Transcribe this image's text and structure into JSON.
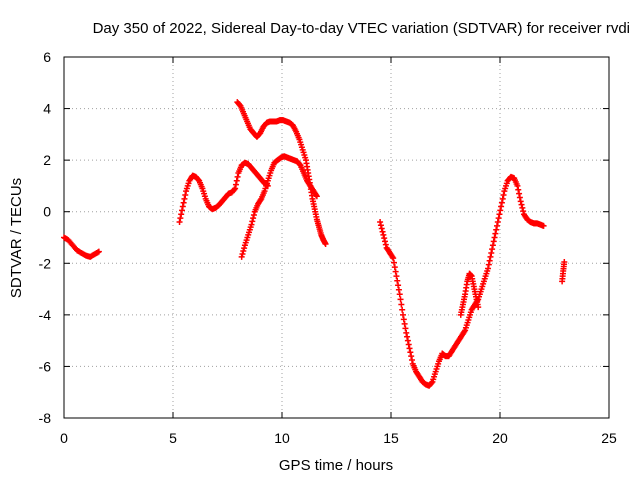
{
  "chart_data": {
    "type": "scatter",
    "title": "Day 350 of 2022, Sidereal Day-to-day VTEC variation (SDTVAR) for receiver rvdi",
    "xlabel": "GPS time / hours",
    "ylabel": "SDTVAR / TECUs",
    "xlim": [
      0,
      25
    ],
    "ylim": [
      -8,
      6
    ],
    "xticks": [
      0,
      5,
      10,
      15,
      20,
      25
    ],
    "yticks": [
      -8,
      -6,
      -4,
      -2,
      0,
      2,
      4,
      6
    ],
    "grid": true,
    "marker": "plus",
    "series_color": "#ff0000",
    "segments": [
      {
        "x": [
          0.0,
          0.2,
          0.4,
          0.6,
          0.8,
          1.0,
          1.2,
          1.4,
          1.6
        ],
        "y": [
          -1.0,
          -1.1,
          -1.3,
          -1.5,
          -1.6,
          -1.7,
          -1.75,
          -1.65,
          -1.55
        ]
      },
      {
        "x": [
          5.3,
          5.45,
          5.6,
          5.75,
          5.9,
          6.05,
          6.2,
          6.35,
          6.5,
          6.65,
          6.8,
          6.95,
          7.1,
          7.25,
          7.4,
          7.55,
          7.7,
          7.85,
          8.0,
          8.15,
          8.3,
          8.45,
          8.6,
          8.75,
          8.9,
          9.05,
          9.2,
          9.35
        ],
        "y": [
          -0.4,
          0.2,
          0.8,
          1.2,
          1.4,
          1.35,
          1.2,
          0.9,
          0.5,
          0.2,
          0.1,
          0.15,
          0.25,
          0.4,
          0.55,
          0.7,
          0.75,
          0.9,
          1.5,
          1.8,
          1.9,
          1.85,
          1.7,
          1.55,
          1.4,
          1.25,
          1.1,
          1.0
        ]
      },
      {
        "x": [
          7.95,
          8.1,
          8.25,
          8.4,
          8.55,
          8.7,
          8.85,
          9.0,
          9.15,
          9.3,
          9.45,
          9.6,
          9.75,
          9.9,
          10.05,
          10.2,
          10.35,
          10.5,
          10.65,
          10.8,
          10.95,
          11.1,
          11.2,
          11.3,
          11.4,
          11.5,
          11.6,
          11.7,
          11.8,
          11.9,
          12.0
        ],
        "y": [
          4.25,
          4.1,
          3.8,
          3.5,
          3.2,
          3.05,
          2.9,
          3.05,
          3.3,
          3.45,
          3.5,
          3.5,
          3.5,
          3.55,
          3.55,
          3.5,
          3.45,
          3.35,
          3.1,
          2.8,
          2.4,
          2.0,
          1.5,
          1.0,
          0.5,
          0.1,
          -0.3,
          -0.6,
          -0.9,
          -1.1,
          -1.25
        ]
      },
      {
        "x": [
          8.15,
          8.3,
          8.45,
          8.6,
          8.75,
          8.9,
          9.05,
          9.2,
          9.35,
          9.5,
          9.65,
          9.8,
          9.95,
          10.1,
          10.25,
          10.4,
          10.55,
          10.7,
          10.85,
          11.0,
          11.15,
          11.3,
          11.45,
          11.6
        ],
        "y": [
          -1.75,
          -1.3,
          -0.9,
          -0.5,
          0.0,
          0.3,
          0.5,
          0.8,
          1.2,
          1.6,
          1.9,
          2.0,
          2.1,
          2.15,
          2.1,
          2.05,
          2.0,
          1.95,
          1.8,
          1.5,
          1.2,
          1.0,
          0.8,
          0.6
        ]
      },
      {
        "x": [
          14.5,
          14.65,
          14.8,
          14.95,
          15.1,
          15.25,
          15.4,
          15.55,
          15.7,
          15.85,
          16.0,
          16.15,
          16.3,
          16.45,
          16.6,
          16.75,
          16.9,
          17.05,
          17.2,
          17.35,
          17.5,
          17.65,
          17.8,
          17.95,
          18.1,
          18.25,
          18.4,
          18.55,
          18.7,
          18.85,
          19.0,
          19.15,
          19.3,
          19.45,
          19.6,
          19.75,
          19.9,
          20.05,
          20.2,
          20.35,
          20.5,
          20.65,
          20.8,
          20.95,
          21.1,
          21.25,
          21.4,
          21.55,
          21.7,
          21.85,
          22.0
        ],
        "y": [
          -0.4,
          -0.9,
          -1.4,
          -1.6,
          -1.8,
          -2.5,
          -3.2,
          -4.0,
          -4.7,
          -5.3,
          -5.9,
          -6.2,
          -6.4,
          -6.6,
          -6.7,
          -6.75,
          -6.6,
          -6.2,
          -5.8,
          -5.5,
          -5.6,
          -5.6,
          -5.4,
          -5.2,
          -5.0,
          -4.8,
          -4.6,
          -4.2,
          -3.8,
          -3.6,
          -3.4,
          -3.0,
          -2.6,
          -2.2,
          -1.6,
          -1.0,
          -0.4,
          0.2,
          0.8,
          1.2,
          1.35,
          1.3,
          1.0,
          0.4,
          -0.1,
          -0.3,
          -0.4,
          -0.45,
          -0.45,
          -0.5,
          -0.55
        ]
      },
      {
        "x": [
          18.2,
          18.3,
          18.4,
          18.5,
          18.6,
          18.7,
          18.8,
          18.9,
          19.0
        ],
        "y": [
          -4.0,
          -3.6,
          -3.2,
          -2.7,
          -2.4,
          -2.5,
          -2.9,
          -3.3,
          -3.7
        ]
      },
      {
        "x": [
          22.85,
          22.9,
          22.95
        ],
        "y": [
          -2.7,
          -2.3,
          -1.95
        ]
      }
    ]
  }
}
